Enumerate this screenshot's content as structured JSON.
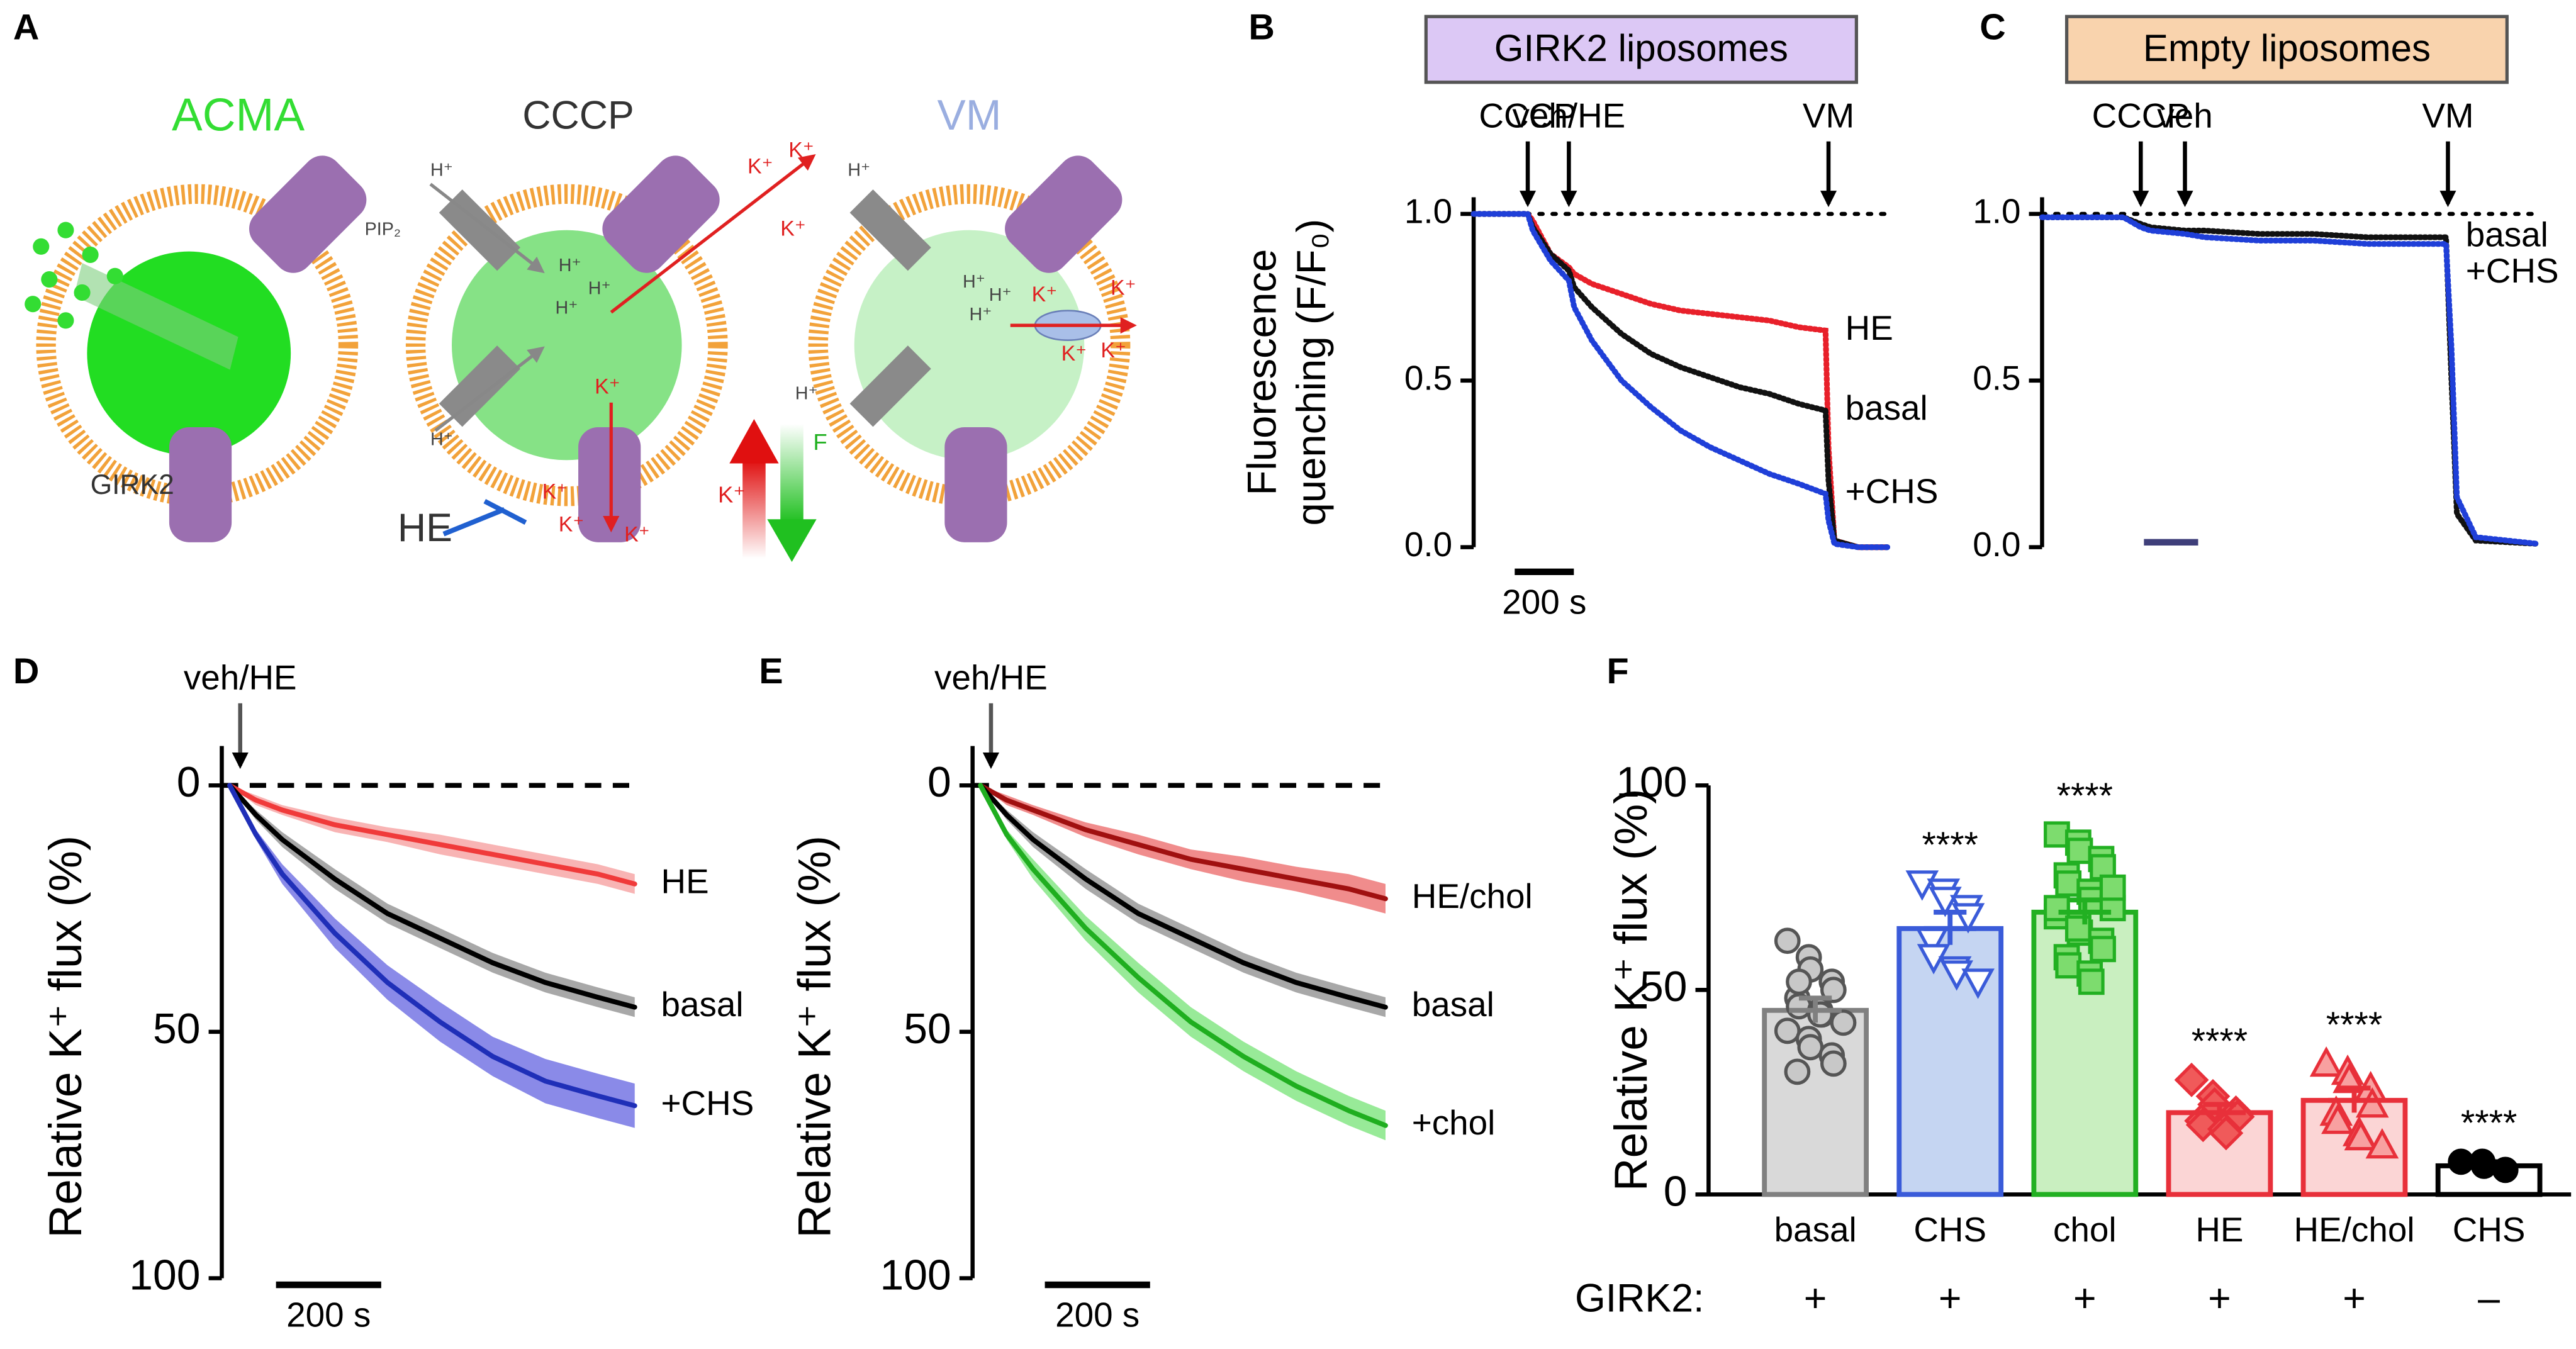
{
  "diagram": {
    "panel": "A",
    "acma": "ACMA",
    "cccp": "CCCP",
    "vm": "VM",
    "pip2": "PIP₂",
    "girk2": "GIRK2",
    "he": "HE",
    "h_ion": "H⁺",
    "k_ion": "K⁺",
    "f": "F"
  },
  "chart_data": [
    {
      "type": "line",
      "panel": "B",
      "title": "GIRK2 liposomes",
      "title_color": "#dcc8f5",
      "y_label": [
        "Fluorescence",
        "quenching (F/F₀)"
      ],
      "x": [
        0,
        150,
        183,
        200,
        260,
        322,
        340,
        400,
        500,
        600,
        700,
        800,
        900,
        1000,
        1100,
        1190,
        1200,
        1220,
        1300,
        1400
      ],
      "xlim": [
        0,
        1400
      ],
      "ylim": [
        0,
        1.05
      ],
      "yticks": [
        {
          "value": 0,
          "label": "0.0"
        },
        {
          "value": 0.5,
          "label": "0.5"
        },
        {
          "value": 1,
          "label": "1.0"
        }
      ],
      "reference_line": {
        "value": 1,
        "style": "dotted"
      },
      "events": [
        {
          "label": "CCCP",
          "x": 183
        },
        {
          "label": "veh/HE",
          "x": 322
        },
        {
          "label": "VM",
          "x": 1200
        }
      ],
      "scale_bar": {
        "label": "200 s",
        "value": 200
      },
      "series": [
        {
          "name": "HE",
          "color": "#e8202a",
          "values": [
            1.0,
            1.0,
            1.0,
            0.98,
            0.88,
            0.84,
            0.82,
            0.79,
            0.76,
            0.73,
            0.71,
            0.7,
            0.69,
            0.68,
            0.66,
            0.65,
            0.3,
            0.02,
            0.0,
            0.0
          ]
        },
        {
          "name": "basal",
          "color": "#111111",
          "values": [
            1.0,
            1.0,
            1.0,
            0.96,
            0.88,
            0.83,
            0.78,
            0.72,
            0.64,
            0.58,
            0.54,
            0.51,
            0.48,
            0.46,
            0.43,
            0.41,
            0.2,
            0.02,
            0.0,
            0.0
          ]
        },
        {
          "name": "+CHS",
          "color": "#1f3fd8",
          "values": [
            1.0,
            1.0,
            1.0,
            0.95,
            0.86,
            0.8,
            0.72,
            0.62,
            0.5,
            0.42,
            0.35,
            0.3,
            0.26,
            0.22,
            0.19,
            0.16,
            0.08,
            0.01,
            0.0,
            0.0
          ]
        }
      ]
    },
    {
      "type": "line",
      "panel": "C",
      "title": "Empty liposomes",
      "title_color": "#f9d3ad",
      "x": [
        0,
        300,
        364,
        400,
        527,
        600,
        800,
        1000,
        1200,
        1400,
        1490,
        1510,
        1530,
        1600,
        1830
      ],
      "xlim": [
        0,
        1830
      ],
      "ylim": [
        0,
        1.05
      ],
      "yticks": [
        {
          "value": 0,
          "label": "0.0"
        },
        {
          "value": 0.5,
          "label": "0.5"
        },
        {
          "value": 1,
          "label": "1.0"
        }
      ],
      "reference_line": {
        "value": 1,
        "style": "dotted"
      },
      "events": [
        {
          "label": "CCCP",
          "x": 364
        },
        {
          "label": "veh",
          "x": 527
        },
        {
          "label": "VM",
          "x": 1497
        }
      ],
      "scale_bar_color": "#3f3f7a",
      "series": [
        {
          "name": "basal",
          "color": "#111111",
          "values": [
            0.99,
            0.99,
            0.97,
            0.96,
            0.95,
            0.95,
            0.94,
            0.94,
            0.93,
            0.93,
            0.93,
            0.5,
            0.1,
            0.02,
            0.01
          ]
        },
        {
          "name": "+CHS",
          "color": "#1f3fd8",
          "values": [
            0.99,
            0.99,
            0.96,
            0.95,
            0.94,
            0.93,
            0.92,
            0.92,
            0.91,
            0.91,
            0.91,
            0.6,
            0.15,
            0.03,
            0.01
          ]
        }
      ]
    },
    {
      "type": "line",
      "panel": "D",
      "y_label": [
        "Relative K⁺ flux (%)"
      ],
      "inverted": true,
      "x": [
        0,
        50,
        100,
        200,
        300,
        400,
        500,
        600,
        700,
        770
      ],
      "xlim": [
        -15,
        1000
      ],
      "ylim": [
        -8,
        100
      ],
      "yticks": [
        0,
        50,
        100
      ],
      "reference_line": {
        "value": 0,
        "style": "dashed"
      },
      "events": [
        {
          "label": "veh/HE",
          "x": 20
        }
      ],
      "scale_bar": {
        "label": "200 s",
        "value": 200
      },
      "series": [
        {
          "name": "HE",
          "color": "#f03a3a",
          "band_color": "#f8b4b4",
          "values": [
            0,
            3,
            5,
            8,
            10,
            12,
            14,
            16,
            18,
            20
          ],
          "errors": [
            0,
            1,
            1,
            1.5,
            1.5,
            2,
            2,
            2,
            2,
            2
          ]
        },
        {
          "name": "basal",
          "color": "#000000",
          "band_color": "#a8a8a8",
          "values": [
            0,
            6,
            11,
            19,
            26,
            31,
            36,
            40,
            43,
            45
          ],
          "errors": [
            0,
            1,
            1.5,
            2,
            2,
            2,
            2,
            2,
            2,
            2
          ]
        },
        {
          "name": "+CHS",
          "color": "#1f2fb8",
          "band_color": "#8a8ae8",
          "values": [
            0,
            10,
            18,
            30,
            40,
            48,
            55,
            60,
            63,
            65
          ],
          "errors": [
            0,
            1,
            2,
            3,
            3.5,
            4,
            4,
            4.5,
            4.5,
            4.5
          ]
        }
      ]
    },
    {
      "type": "line",
      "panel": "E",
      "y_label": [
        "Relative K⁺ flux (%)"
      ],
      "inverted": true,
      "x": [
        0,
        50,
        100,
        200,
        300,
        400,
        500,
        600,
        700,
        770
      ],
      "xlim": [
        -15,
        1000
      ],
      "ylim": [
        -8,
        100
      ],
      "yticks": [
        0,
        50,
        100
      ],
      "reference_line": {
        "value": 0,
        "style": "dashed"
      },
      "events": [
        {
          "label": "veh/HE",
          "x": 20
        }
      ],
      "scale_bar": {
        "label": "200 s",
        "value": 200
      },
      "series": [
        {
          "name": "HE/chol",
          "color": "#a01010",
          "band_color": "#f08c8c",
          "values": [
            0,
            3,
            5,
            9,
            12,
            15,
            17,
            19,
            21,
            23
          ],
          "errors": [
            0,
            1,
            1,
            1.5,
            2,
            2,
            2.5,
            2.5,
            3,
            3
          ]
        },
        {
          "name": "basal",
          "color": "#000000",
          "band_color": "#a8a8a8",
          "values": [
            0,
            6,
            11,
            19,
            26,
            31,
            36,
            40,
            43,
            45
          ],
          "errors": [
            0,
            1,
            1.5,
            2,
            2,
            2,
            2,
            2,
            2,
            2
          ]
        },
        {
          "name": "+chol",
          "color": "#1fae1f",
          "band_color": "#98ea98",
          "values": [
            0,
            10,
            17,
            29,
            39,
            48,
            55,
            61,
            66,
            69
          ],
          "errors": [
            0,
            1,
            2,
            2.5,
            3,
            3,
            3,
            3,
            3,
            3
          ]
        }
      ]
    },
    {
      "type": "bar",
      "panel": "F",
      "y_label": "Relative K⁺ flux (%)",
      "categories": [
        "basal",
        "CHS",
        "chol",
        "HE",
        "HE/chol",
        "CHS"
      ],
      "values": [
        45,
        65,
        69,
        20,
        23,
        7
      ],
      "errors": [
        3,
        4,
        3,
        2,
        3,
        1
      ],
      "significance": [
        null,
        "****",
        "****",
        "****",
        "****",
        "****"
      ],
      "colors": [
        "#808080",
        "#3a5bd9",
        "#22b022",
        "#e8303a",
        "#e8303a",
        "#000000"
      ],
      "fill_colors": [
        "#d9d9d9",
        "#c5d5f2",
        "#c9efc0",
        "#fbd5d5",
        "#fbd5d5",
        "#ffffff"
      ],
      "point_colors": [
        "#c8c8c8",
        "#ffffff",
        "#7ddc6e",
        "#f05a5a",
        "#f8a0a0",
        "#000000"
      ],
      "markers": [
        "circle",
        "triangle-down",
        "square",
        "diamond",
        "triangle-up",
        "circle"
      ],
      "points": [
        [
          62,
          58,
          55,
          52,
          50,
          48,
          46,
          45,
          44,
          42,
          40,
          38,
          36,
          34,
          32,
          30,
          52,
          44
        ],
        [
          76,
          74,
          72,
          70,
          68,
          62,
          58,
          55,
          54,
          52
        ],
        [
          88,
          86,
          84,
          82,
          80,
          78,
          76,
          74,
          72,
          70,
          68,
          66,
          64,
          62,
          60,
          58,
          56,
          54,
          52,
          75,
          70,
          65
        ],
        [
          28,
          24,
          22,
          20,
          19,
          18,
          17,
          16,
          15
        ],
        [
          32,
          30,
          28,
          26,
          22,
          20,
          18,
          15,
          14,
          12
        ],
        [
          8,
          8,
          7,
          6
        ]
      ],
      "ylim": [
        0,
        100
      ],
      "yticks": [
        0,
        50,
        100
      ],
      "row_label": "GIRK2:",
      "row_values": [
        "+",
        "+",
        "+",
        "+",
        "+",
        "–"
      ]
    }
  ]
}
